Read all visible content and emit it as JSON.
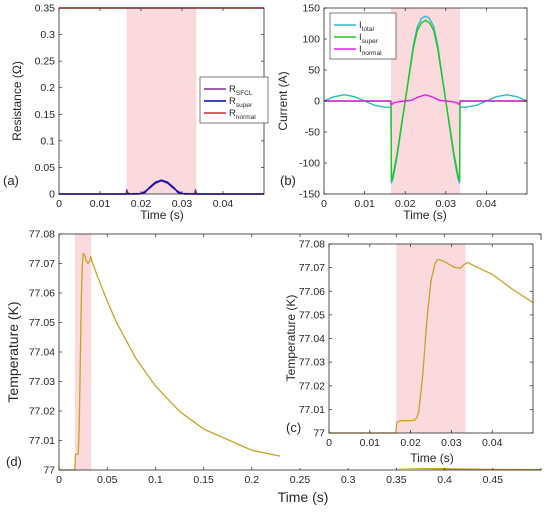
{
  "chart_data": [
    {
      "panel": "(a)",
      "type": "line",
      "xlabel": "Time (s)",
      "ylabel": "Resistance (Ω)",
      "xlim": [
        0,
        0.05
      ],
      "ylim": [
        0,
        0.35
      ],
      "xticks": [
        0,
        0.01,
        0.02,
        0.03,
        0.04
      ],
      "xtick_labels": [
        "0",
        "0.01",
        "0.02",
        "0.03",
        "0.04"
      ],
      "yticks": [
        0,
        0.05,
        0.1,
        0.15,
        0.2,
        0.25,
        0.3,
        0.35
      ],
      "ytick_labels": [
        "0",
        "0.05",
        "0.1",
        "0.15",
        "0.2",
        "0.25",
        "0.3",
        "0.35"
      ],
      "grid": false,
      "legend_position": "center-right",
      "shaded_region": [
        0.0165,
        0.0335
      ],
      "series": [
        {
          "name": "R",
          "sub": "SFCL",
          "color": "#7e2f8e",
          "x": [
            0,
            0.0164,
            0.0165,
            0.0167,
            0.0169,
            0.0175,
            0.02,
            0.022,
            0.0235,
            0.025,
            0.0265,
            0.028,
            0.03,
            0.0325,
            0.0331,
            0.0333,
            0.0335,
            0.0336,
            0.05
          ],
          "y": [
            0,
            0,
            0.008,
            0.004,
            0.001,
            0.0005,
            0.001,
            0.01,
            0.02,
            0.025,
            0.02,
            0.01,
            0.001,
            0.0005,
            0.001,
            0.008,
            0.002,
            0,
            0
          ]
        },
        {
          "name": "R",
          "sub": "super",
          "color": "#0000c0",
          "x": [
            0,
            0.0195,
            0.021,
            0.022,
            0.0235,
            0.025,
            0.0265,
            0.028,
            0.029,
            0.0305,
            0.05
          ],
          "y": [
            0,
            0,
            0.003,
            0.012,
            0.022,
            0.026,
            0.022,
            0.012,
            0.003,
            0,
            0
          ]
        },
        {
          "name": "R",
          "sub": "normal",
          "color": "#d62728",
          "x": [
            0,
            0.05
          ],
          "y": [
            0.35,
            0.35
          ]
        }
      ]
    },
    {
      "panel": "(b)",
      "type": "line",
      "xlabel": "Time (s)",
      "ylabel": "Current (A)",
      "xlim": [
        0,
        0.05
      ],
      "ylim": [
        -150,
        150
      ],
      "xticks": [
        0,
        0.01,
        0.02,
        0.03,
        0.04
      ],
      "xtick_labels": [
        "0",
        "0.01",
        "0.02",
        "0.03",
        "0.04"
      ],
      "yticks": [
        -150,
        -100,
        -50,
        0,
        50,
        100,
        150
      ],
      "ytick_labels": [
        "-150",
        "-100",
        "-50",
        "0",
        "50",
        "100",
        "150"
      ],
      "grid": false,
      "legend_position": "top-left",
      "shaded_region": [
        0.0165,
        0.0335
      ],
      "series": [
        {
          "name": "I",
          "sub": "total",
          "color": "#2ab7c9",
          "x": [
            0,
            0.0025,
            0.005,
            0.0075,
            0.01,
            0.0125,
            0.015,
            0.0165,
            0.0166,
            0.017,
            0.018,
            0.019,
            0.02,
            0.021,
            0.022,
            0.023,
            0.024,
            0.025,
            0.026,
            0.027,
            0.028,
            0.029,
            0.03,
            0.031,
            0.032,
            0.033,
            0.0334,
            0.0335,
            0.035,
            0.0375,
            0.04,
            0.0425,
            0.045,
            0.0475,
            0.05
          ],
          "y": [
            0,
            7,
            10,
            7,
            0,
            -7,
            -10,
            -10,
            -132,
            -125,
            -90,
            -45,
            0,
            45,
            90,
            120,
            133,
            137,
            133,
            120,
            90,
            45,
            0,
            -45,
            -90,
            -125,
            -132,
            -10,
            -10,
            -7,
            0,
            7,
            10,
            7,
            0
          ]
        },
        {
          "name": "I",
          "sub": "super",
          "color": "#1ec81e",
          "x": [
            0,
            0.0165,
            0.0166,
            0.017,
            0.018,
            0.019,
            0.02,
            0.021,
            0.022,
            0.023,
            0.024,
            0.025,
            0.026,
            0.027,
            0.028,
            0.029,
            0.03,
            0.031,
            0.032,
            0.033,
            0.0334,
            0.0335,
            0.05
          ],
          "y": [
            0,
            0,
            -128,
            -120,
            -85,
            -42,
            0,
            42,
            85,
            114,
            126,
            130,
            126,
            114,
            85,
            42,
            0,
            -42,
            -85,
            -120,
            -128,
            0,
            0
          ]
        },
        {
          "name": "I",
          "sub": "normal",
          "color": "#e01ee0",
          "x": [
            0,
            0.0164,
            0.0166,
            0.0172,
            0.0185,
            0.02,
            0.0215,
            0.0235,
            0.025,
            0.0265,
            0.0285,
            0.03,
            0.0315,
            0.0328,
            0.0334,
            0.0336,
            0.05
          ],
          "y": [
            0,
            0,
            -6,
            -3,
            -1,
            0,
            1,
            7,
            10,
            7,
            1,
            0,
            -1,
            -3,
            -6,
            0,
            0
          ]
        }
      ]
    },
    {
      "panel": "(d)",
      "type": "line",
      "xlabel": "Time (s)",
      "ylabel": "Temperature (K)",
      "xlim": [
        0,
        0.5
      ],
      "ylim": [
        77,
        77.08
      ],
      "xticks": [
        0,
        0.05,
        0.1,
        0.15,
        0.2,
        0.25,
        0.3,
        0.35,
        0.4,
        0.45
      ],
      "xtick_labels": [
        "0",
        "0.05",
        "0.1",
        "0.15",
        "0.2",
        "0.25",
        "0.3",
        "0.35",
        "0.4",
        "0.45"
      ],
      "yticks": [
        77,
        77.01,
        77.02,
        77.03,
        77.04,
        77.05,
        77.06,
        77.07,
        77.08
      ],
      "ytick_labels": [
        "77",
        "77.01",
        "77.02",
        "77.03",
        "77.04",
        "77.05",
        "77.06",
        "77.07",
        "77.08"
      ],
      "grid": false,
      "shaded_region": [
        0.0165,
        0.0335
      ],
      "series": [
        {
          "color": "#c9a227",
          "x": [
            0,
            0.0165,
            0.017,
            0.0195,
            0.02,
            0.021,
            0.022,
            0.023,
            0.024,
            0.025,
            0.0265,
            0.028,
            0.03,
            0.032,
            0.033,
            0.034,
            0.04,
            0.05,
            0.06,
            0.08,
            0.1,
            0.125,
            0.15,
            0.2,
            0.25,
            0.3,
            0.35,
            0.4,
            0.45,
            0.5
          ],
          "y": [
            77,
            77,
            77.0053,
            77.0053,
            77.0056,
            77.015,
            77.035,
            77.055,
            77.068,
            77.0734,
            77.073,
            77.0712,
            77.07,
            77.0708,
            77.0723,
            77.071,
            77.0655,
            77.0573,
            77.0498,
            77.0377,
            77.0285,
            77.0199,
            77.0139,
            77.0067,
            77.0033,
            77.0016,
            77.0008,
            77.0004,
            77.0002,
            77.0001
          ]
        }
      ]
    },
    {
      "panel": "(c)",
      "type": "line",
      "xlabel": "Time (s)",
      "ylabel": "Temperature (K)",
      "xlim": [
        0,
        0.05
      ],
      "ylim": [
        77,
        77.08
      ],
      "xticks": [
        0,
        0.01,
        0.02,
        0.03,
        0.04
      ],
      "xtick_labels": [
        "0",
        "0.01",
        "0.02",
        "0.03",
        "0.04"
      ],
      "yticks": [
        77,
        77.01,
        77.02,
        77.03,
        77.04,
        77.05,
        77.06,
        77.07,
        77.08
      ],
      "ytick_labels": [
        "77",
        "77.01",
        "77.02",
        "77.03",
        "77.04",
        "77.05",
        "77.06",
        "77.07",
        "77.08"
      ],
      "grid": false,
      "shaded_region": [
        0.0165,
        0.0335
      ],
      "series": [
        {
          "color": "#c9a227",
          "x": [
            0,
            0.0164,
            0.0166,
            0.0175,
            0.019,
            0.0205,
            0.021,
            0.0215,
            0.022,
            0.023,
            0.024,
            0.025,
            0.026,
            0.0265,
            0.027,
            0.028,
            0.029,
            0.03,
            0.031,
            0.032,
            0.0325,
            0.033,
            0.034,
            0.036,
            0.04,
            0.045,
            0.05
          ],
          "y": [
            77,
            77,
            77.0045,
            77.0052,
            77.0052,
            77.0053,
            77.0056,
            77.0063,
            77.009,
            77.025,
            77.048,
            77.0645,
            77.0718,
            77.0733,
            77.0734,
            77.0728,
            77.0718,
            77.0708,
            77.07,
            77.0698,
            77.0702,
            77.0712,
            77.0722,
            77.0704,
            77.0672,
            77.0608,
            77.0552
          ]
        }
      ]
    }
  ]
}
